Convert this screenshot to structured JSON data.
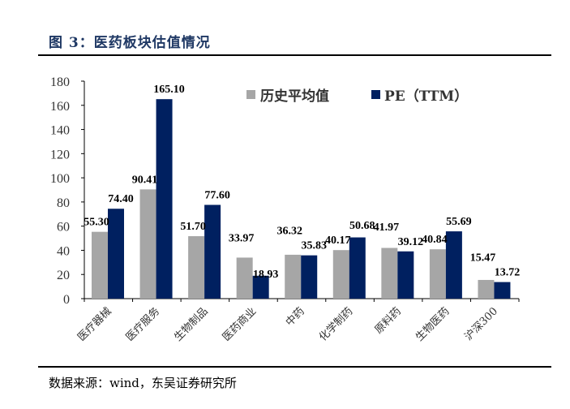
{
  "title": "图 3：医药板块估值情况",
  "source": "数据来源：wind，东吴证券研究所",
  "chart_data": {
    "type": "bar",
    "title": "",
    "xlabel": "",
    "ylabel": "",
    "ylim": [
      0,
      180
    ],
    "yticks": [
      0,
      20,
      40,
      60,
      80,
      100,
      120,
      140,
      160,
      180
    ],
    "grid": false,
    "legend_position": "top-right",
    "categories": [
      "医疗器械",
      "医疗服务",
      "生物制品",
      "医药商业",
      "中药",
      "化学制药",
      "原料药",
      "生物医药",
      "沪深300"
    ],
    "series": [
      {
        "name": "历史平均值",
        "color": "#a6a6a6",
        "values": [
          55.3,
          90.41,
          51.7,
          33.97,
          36.32,
          40.17,
          41.97,
          40.84,
          15.47
        ]
      },
      {
        "name": "PE（TTM）",
        "color": "#002060",
        "values": [
          74.4,
          165.1,
          77.6,
          18.93,
          35.83,
          50.68,
          39.12,
          55.69,
          13.72
        ]
      }
    ]
  }
}
